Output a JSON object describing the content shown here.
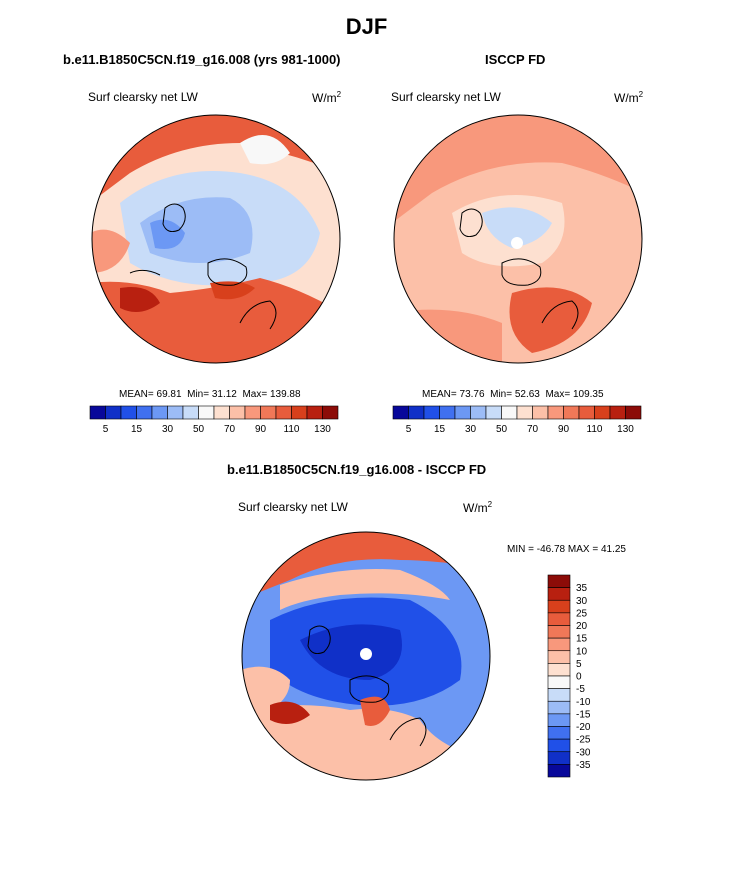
{
  "chart_data": [
    {
      "type": "heatmap",
      "projection": "north-polar-stereographic",
      "title": "b.e11.B1850C5CN.f19_g16.008 (yrs 981-1000)",
      "variable": "Surf clearsky net LW",
      "units": "W/m",
      "units_sup": "2",
      "stats": {
        "mean_label": "MEAN=",
        "mean": "69.81",
        "min_label": "Min=",
        "min": "31.12",
        "max_label": "Max=",
        "max": "139.88"
      },
      "colorbar": {
        "ticks": [
          "5",
          "15",
          "30",
          "50",
          "70",
          "90",
          "110",
          "130"
        ],
        "colors": [
          "#08089a",
          "#1030c8",
          "#2050e8",
          "#4070f0",
          "#6c98f4",
          "#9cbcf6",
          "#c8dcf8",
          "#f8f8f8",
          "#fde0d0",
          "#fcc0a8",
          "#f8987c",
          "#f07858",
          "#e85c3c",
          "#d8401c",
          "#b82010",
          "#8c0c08"
        ]
      }
    },
    {
      "type": "heatmap",
      "projection": "north-polar-stereographic",
      "title": "ISCCP FD",
      "variable": "Surf clearsky net LW",
      "units": "W/m",
      "units_sup": "2",
      "stats": {
        "mean_label": "MEAN=",
        "mean": "73.76",
        "min_label": "Min=",
        "min": "52.63",
        "max_label": "Max=",
        "max": "109.35"
      },
      "colorbar": {
        "ticks": [
          "5",
          "15",
          "30",
          "50",
          "70",
          "90",
          "110",
          "130"
        ],
        "colors": [
          "#08089a",
          "#1030c8",
          "#2050e8",
          "#4070f0",
          "#6c98f4",
          "#9cbcf6",
          "#c8dcf8",
          "#f8f8f8",
          "#fde0d0",
          "#fcc0a8",
          "#f8987c",
          "#f07858",
          "#e85c3c",
          "#d8401c",
          "#b82010",
          "#8c0c08"
        ]
      }
    },
    {
      "type": "heatmap",
      "projection": "north-polar-stereographic",
      "title": "b.e11.B1850C5CN.f19_g16.008 - ISCCP FD",
      "variable": "Surf clearsky net LW",
      "units": "W/m",
      "units_sup": "2",
      "stats": {
        "min_label": "MIN =",
        "min": "-46.78",
        "max_label": "MAX =",
        "max": "41.25"
      },
      "colorbar": {
        "ticks": [
          "35",
          "30",
          "25",
          "20",
          "15",
          "10",
          "5",
          "0",
          "-5",
          "-10",
          "-15",
          "-20",
          "-25",
          "-30",
          "-35"
        ],
        "colors": [
          "#8c0c08",
          "#b82010",
          "#d8401c",
          "#e85c3c",
          "#f07858",
          "#f8987c",
          "#fcc0a8",
          "#fde0d0",
          "#f8f8f8",
          "#c8dcf8",
          "#9cbcf6",
          "#6c98f4",
          "#4070f0",
          "#2050e8",
          "#1030c8",
          "#08089a"
        ]
      }
    }
  ],
  "page": {
    "season": "DJF"
  }
}
